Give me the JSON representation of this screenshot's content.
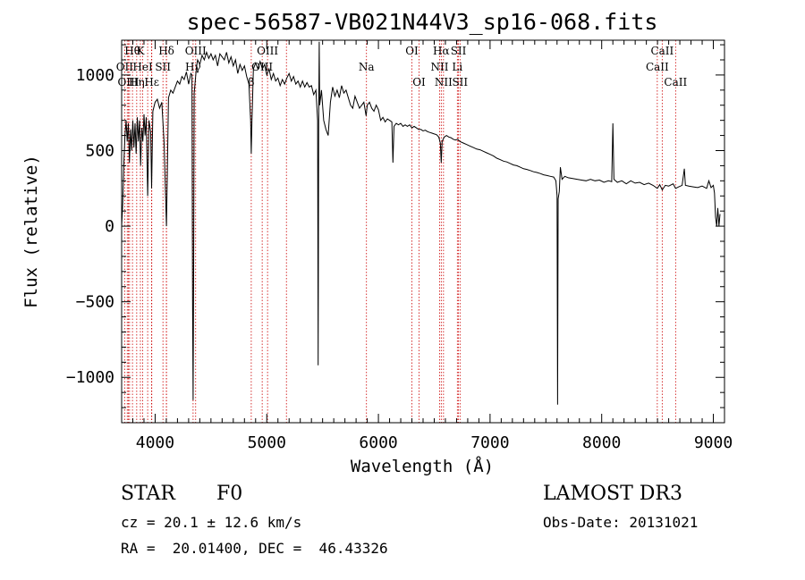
{
  "chart_data": {
    "type": "line",
    "title": "spec-56587-VB021N44V3_sp16-068.fits",
    "xlabel": "Wavelength (Å)",
    "ylabel": "Flux (relative)",
    "xlim": [
      3700,
      9100
    ],
    "ylim": [
      -1300,
      1230
    ],
    "x_ticks": [
      4000,
      5000,
      6000,
      7000,
      8000,
      9000
    ],
    "y_ticks": [
      -1000,
      -500,
      0,
      500,
      1000
    ],
    "x_ticks_text": [
      "4000",
      "5000",
      "6000",
      "7000",
      "8000",
      "9000"
    ],
    "y_ticks_text": [
      "−1000",
      "−500",
      "0",
      "500",
      "1000"
    ],
    "line_color": "#000000",
    "marker_color": "#cc0000",
    "series": [
      {
        "name": "flux",
        "points": [
          [
            3700,
            0
          ],
          [
            3710,
            150
          ],
          [
            3720,
            420
          ],
          [
            3730,
            600
          ],
          [
            3740,
            700
          ],
          [
            3750,
            560
          ],
          [
            3760,
            680
          ],
          [
            3770,
            420
          ],
          [
            3780,
            640
          ],
          [
            3790,
            500
          ],
          [
            3800,
            700
          ],
          [
            3810,
            520
          ],
          [
            3820,
            680
          ],
          [
            3830,
            480
          ],
          [
            3840,
            720
          ],
          [
            3850,
            560
          ],
          [
            3860,
            700
          ],
          [
            3870,
            400
          ],
          [
            3880,
            650
          ],
          [
            3890,
            560
          ],
          [
            3900,
            740
          ],
          [
            3910,
            600
          ],
          [
            3920,
            720
          ],
          [
            3933,
            200
          ],
          [
            3945,
            700
          ],
          [
            3960,
            620
          ],
          [
            3968,
            250
          ],
          [
            3980,
            760
          ],
          [
            4000,
            820
          ],
          [
            4020,
            840
          ],
          [
            4040,
            780
          ],
          [
            4060,
            820
          ],
          [
            4080,
            560
          ],
          [
            4101,
            0
          ],
          [
            4120,
            850
          ],
          [
            4140,
            900
          ],
          [
            4160,
            880
          ],
          [
            4180,
            920
          ],
          [
            4200,
            960
          ],
          [
            4220,
            940
          ],
          [
            4240,
            990
          ],
          [
            4260,
            970
          ],
          [
            4280,
            1020
          ],
          [
            4300,
            940
          ],
          [
            4320,
            1010
          ],
          [
            4330,
            1000
          ],
          [
            4335,
            -500
          ],
          [
            4340,
            -1150
          ],
          [
            4345,
            -300
          ],
          [
            4350,
            880
          ],
          [
            4370,
            1050
          ],
          [
            4380,
            1100
          ],
          [
            4400,
            1070
          ],
          [
            4420,
            1130
          ],
          [
            4440,
            1100
          ],
          [
            4460,
            1150
          ],
          [
            4480,
            1110
          ],
          [
            4500,
            1140
          ],
          [
            4520,
            1100
          ],
          [
            4540,
            1130
          ],
          [
            4560,
            1060
          ],
          [
            4580,
            1140
          ],
          [
            4600,
            1120
          ],
          [
            4620,
            1100
          ],
          [
            4640,
            1150
          ],
          [
            4660,
            1080
          ],
          [
            4680,
            1120
          ],
          [
            4700,
            1060
          ],
          [
            4720,
            1100
          ],
          [
            4740,
            1010
          ],
          [
            4760,
            1070
          ],
          [
            4780,
            1030
          ],
          [
            4800,
            1060
          ],
          [
            4820,
            990
          ],
          [
            4840,
            940
          ],
          [
            4855,
            700
          ],
          [
            4861,
            480
          ],
          [
            4867,
            700
          ],
          [
            4880,
            1040
          ],
          [
            4900,
            1080
          ],
          [
            4920,
            1040
          ],
          [
            4940,
            1090
          ],
          [
            4960,
            1040
          ],
          [
            4980,
            1070
          ],
          [
            5000,
            1000
          ],
          [
            5020,
            1040
          ],
          [
            5040,
            970
          ],
          [
            5060,
            1010
          ],
          [
            5080,
            960
          ],
          [
            5100,
            980
          ],
          [
            5120,
            930
          ],
          [
            5140,
            970
          ],
          [
            5160,
            940
          ],
          [
            5180,
            980
          ],
          [
            5200,
            1010
          ],
          [
            5220,
            960
          ],
          [
            5240,
            990
          ],
          [
            5260,
            940
          ],
          [
            5280,
            960
          ],
          [
            5300,
            920
          ],
          [
            5320,
            960
          ],
          [
            5340,
            920
          ],
          [
            5360,
            950
          ],
          [
            5380,
            920
          ],
          [
            5400,
            930
          ],
          [
            5420,
            870
          ],
          [
            5440,
            900
          ],
          [
            5455,
            700
          ],
          [
            5460,
            -920
          ],
          [
            5465,
            700
          ],
          [
            5470,
            1220
          ],
          [
            5474,
            800
          ],
          [
            5490,
            900
          ],
          [
            5510,
            700
          ],
          [
            5530,
            640
          ],
          [
            5550,
            600
          ],
          [
            5570,
            820
          ],
          [
            5590,
            920
          ],
          [
            5610,
            860
          ],
          [
            5630,
            900
          ],
          [
            5650,
            850
          ],
          [
            5670,
            930
          ],
          [
            5690,
            880
          ],
          [
            5710,
            900
          ],
          [
            5730,
            850
          ],
          [
            5750,
            800
          ],
          [
            5770,
            780
          ],
          [
            5790,
            860
          ],
          [
            5810,
            820
          ],
          [
            5830,
            780
          ],
          [
            5850,
            800
          ],
          [
            5870,
            820
          ],
          [
            5890,
            730
          ],
          [
            5900,
            800
          ],
          [
            5920,
            820
          ],
          [
            5940,
            780
          ],
          [
            5960,
            760
          ],
          [
            5980,
            800
          ],
          [
            6000,
            770
          ],
          [
            6020,
            700
          ],
          [
            6040,
            720
          ],
          [
            6060,
            690
          ],
          [
            6080,
            710
          ],
          [
            6100,
            700
          ],
          [
            6120,
            690
          ],
          [
            6130,
            420
          ],
          [
            6140,
            660
          ],
          [
            6160,
            680
          ],
          [
            6180,
            670
          ],
          [
            6200,
            680
          ],
          [
            6220,
            660
          ],
          [
            6240,
            670
          ],
          [
            6260,
            660
          ],
          [
            6280,
            670
          ],
          [
            6300,
            650
          ],
          [
            6320,
            660
          ],
          [
            6340,
            650
          ],
          [
            6360,
            640
          ],
          [
            6380,
            640
          ],
          [
            6400,
            630
          ],
          [
            6420,
            635
          ],
          [
            6440,
            625
          ],
          [
            6460,
            620
          ],
          [
            6480,
            615
          ],
          [
            6500,
            610
          ],
          [
            6520,
            605
          ],
          [
            6540,
            590
          ],
          [
            6555,
            550
          ],
          [
            6563,
            420
          ],
          [
            6571,
            560
          ],
          [
            6590,
            590
          ],
          [
            6610,
            600
          ],
          [
            6630,
            590
          ],
          [
            6650,
            585
          ],
          [
            6670,
            575
          ],
          [
            6690,
            570
          ],
          [
            6710,
            575
          ],
          [
            6730,
            560
          ],
          [
            6760,
            550
          ],
          [
            6790,
            540
          ],
          [
            6820,
            530
          ],
          [
            6850,
            520
          ],
          [
            6880,
            510
          ],
          [
            6910,
            505
          ],
          [
            6940,
            495
          ],
          [
            6970,
            485
          ],
          [
            7000,
            475
          ],
          [
            7030,
            465
          ],
          [
            7060,
            450
          ],
          [
            7090,
            440
          ],
          [
            7120,
            430
          ],
          [
            7150,
            425
          ],
          [
            7180,
            415
          ],
          [
            7210,
            405
          ],
          [
            7240,
            400
          ],
          [
            7270,
            390
          ],
          [
            7300,
            380
          ],
          [
            7330,
            375
          ],
          [
            7360,
            368
          ],
          [
            7390,
            360
          ],
          [
            7420,
            355
          ],
          [
            7450,
            348
          ],
          [
            7480,
            340
          ],
          [
            7510,
            335
          ],
          [
            7540,
            330
          ],
          [
            7570,
            325
          ],
          [
            7590,
            300
          ],
          [
            7600,
            200
          ],
          [
            7605,
            -1180
          ],
          [
            7610,
            180
          ],
          [
            7620,
            230
          ],
          [
            7630,
            390
          ],
          [
            7645,
            310
          ],
          [
            7670,
            330
          ],
          [
            7700,
            320
          ],
          [
            7740,
            315
          ],
          [
            7780,
            310
          ],
          [
            7820,
            305
          ],
          [
            7860,
            300
          ],
          [
            7900,
            310
          ],
          [
            7940,
            300
          ],
          [
            7980,
            305
          ],
          [
            8020,
            290
          ],
          [
            8060,
            300
          ],
          [
            8090,
            295
          ],
          [
            8100,
            680
          ],
          [
            8110,
            310
          ],
          [
            8140,
            290
          ],
          [
            8180,
            300
          ],
          [
            8220,
            280
          ],
          [
            8260,
            300
          ],
          [
            8300,
            285
          ],
          [
            8340,
            290
          ],
          [
            8380,
            275
          ],
          [
            8420,
            285
          ],
          [
            8460,
            270
          ],
          [
            8498,
            250
          ],
          [
            8520,
            275
          ],
          [
            8542,
            240
          ],
          [
            8570,
            270
          ],
          [
            8600,
            265
          ],
          [
            8640,
            280
          ],
          [
            8662,
            250
          ],
          [
            8690,
            260
          ],
          [
            8720,
            270
          ],
          [
            8740,
            380
          ],
          [
            8750,
            270
          ],
          [
            8780,
            265
          ],
          [
            8820,
            260
          ],
          [
            8860,
            255
          ],
          [
            8900,
            265
          ],
          [
            8940,
            250
          ],
          [
            8960,
            300
          ],
          [
            8980,
            255
          ],
          [
            9000,
            270
          ],
          [
            9010,
            220
          ],
          [
            9020,
            60
          ],
          [
            9030,
            0
          ],
          [
            9040,
            120
          ],
          [
            9050,
            0
          ],
          [
            9060,
            80
          ]
        ]
      }
    ],
    "lines": [
      {
        "label": "Hθ",
        "x": 3797,
        "row": 0
      },
      {
        "label": "OII",
        "x": 3727,
        "row": 1
      },
      {
        "label": "OIII",
        "x": 3760,
        "row": 2
      },
      {
        "label": "Hη",
        "x": 3835,
        "row": 2
      },
      {
        "label": "K",
        "x": 3868,
        "row": 0
      },
      {
        "label": "HeI",
        "x": 3889,
        "row": 1
      },
      {
        "label": "Hε",
        "x": 3970,
        "row": 2
      },
      {
        "label": "Hδ",
        "x": 4101,
        "row": 0
      },
      {
        "label": "SII",
        "x": 4070,
        "row": 1
      },
      {
        "label": "OIII",
        "x": 4363,
        "row": 0
      },
      {
        "label": "Hγ",
        "x": 4340,
        "row": 1
      },
      {
        "label": "OIII",
        "x": 5007,
        "row": 0
      },
      {
        "label": "OIII",
        "x": 4959,
        "row": 1
      },
      {
        "label": "β",
        "x": 4861,
        "row": 2
      },
      {
        "label": "Na",
        "x": 5893,
        "row": 1
      },
      {
        "label": "OI",
        "x": 6300,
        "row": 0
      },
      {
        "label": "OI",
        "x": 6364,
        "row": 2
      },
      {
        "label": "Hα",
        "x": 6563,
        "row": 0
      },
      {
        "label": "SII",
        "x": 6717,
        "row": 0
      },
      {
        "label": "NII",
        "x": 6548,
        "row": 1
      },
      {
        "label": "Li",
        "x": 6707,
        "row": 1
      },
      {
        "label": "NII",
        "x": 6583,
        "row": 2
      },
      {
        "label": "SII",
        "x": 6731,
        "row": 2
      },
      {
        "label": "CaII",
        "x": 8542,
        "row": 0
      },
      {
        "label": "CaII",
        "x": 8498,
        "row": 1
      },
      {
        "label": "CaII",
        "x": 8662,
        "row": 2
      }
    ],
    "extra_marker_x": [
      3750,
      3771,
      3933,
      3968,
      4102,
      5176
    ]
  },
  "info": {
    "object_class": "STAR",
    "subclass": "F0",
    "cz": "cz = 20.1 ± 12.6 km/s",
    "coords": "RA =  20.01400, DEC =  46.43326",
    "survey": "LAMOST DR3",
    "obs_date": "Obs-Date: 20131021"
  }
}
